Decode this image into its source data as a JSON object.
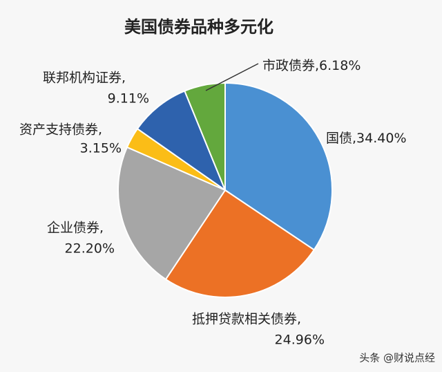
{
  "chart_data": {
    "type": "pie",
    "title": "美国债券品种多元化",
    "categories": [
      "国债,",
      "抵押贷款相关债券,",
      "企业债券,",
      "资产支持债券,",
      "联邦机构证券,",
      "市政债券,"
    ],
    "values": [
      34.4,
      24.96,
      22.2,
      3.15,
      9.11,
      6.18
    ],
    "value_labels": [
      "34.40%",
      "24.96%",
      "22.20%",
      "3.15%",
      "9.11%",
      "6.18%"
    ],
    "colors": [
      "#4a90d2",
      "#ec7125",
      "#a6a6a6",
      "#fbbd17",
      "#2e62ad",
      "#63a83d"
    ],
    "watermark": "头条 @财说点经"
  }
}
